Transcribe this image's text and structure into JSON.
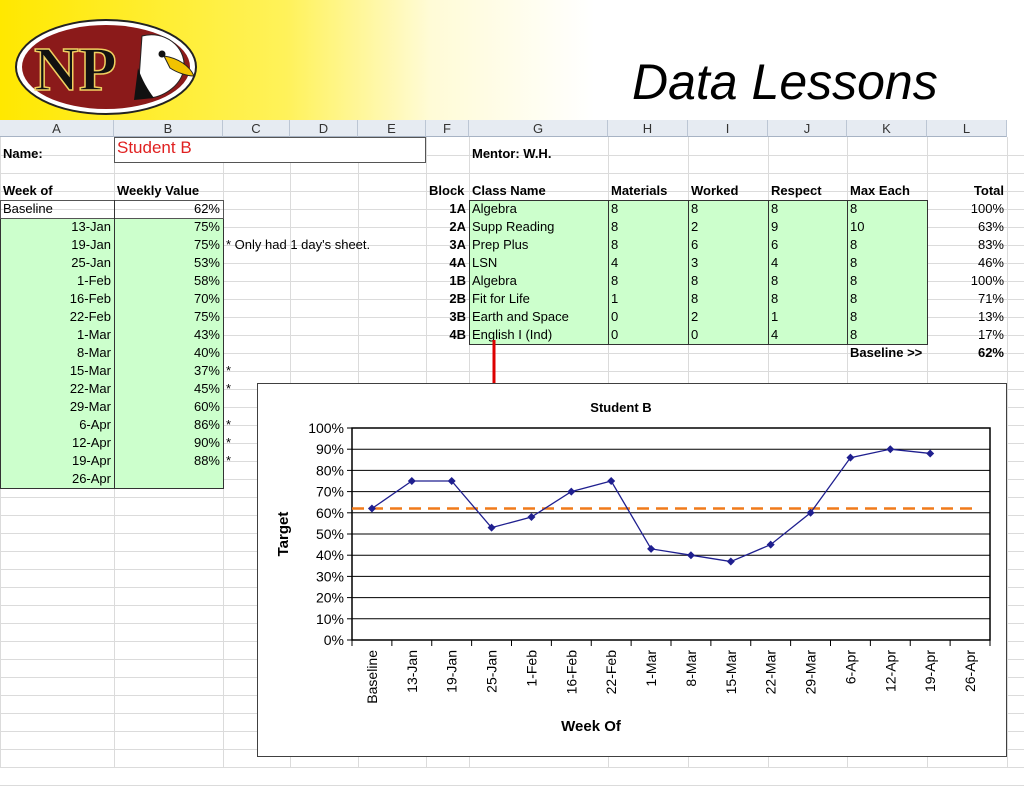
{
  "slide": {
    "title": "Data Lessons"
  },
  "logo": {
    "text": "NP"
  },
  "sheet": {
    "columns": [
      "A",
      "B",
      "C",
      "D",
      "E",
      "F",
      "G",
      "H",
      "I",
      "J",
      "K",
      "L"
    ],
    "name_label": "Name:",
    "name_value": "Student B",
    "mentor": "Mentor:  W.H.",
    "left_headers": [
      "Week of",
      "Weekly Value"
    ],
    "weeks": [
      {
        "label": "Baseline",
        "value": "62%",
        "note": ""
      },
      {
        "label": "13-Jan",
        "value": "75%",
        "note": ""
      },
      {
        "label": "19-Jan",
        "value": "75%",
        "note": "* Only had 1 day's sheet."
      },
      {
        "label": "25-Jan",
        "value": "53%",
        "note": ""
      },
      {
        "label": "1-Feb",
        "value": "58%",
        "note": ""
      },
      {
        "label": "16-Feb",
        "value": "70%",
        "note": ""
      },
      {
        "label": "22-Feb",
        "value": "75%",
        "note": ""
      },
      {
        "label": "1-Mar",
        "value": "43%",
        "note": ""
      },
      {
        "label": "8-Mar",
        "value": "40%",
        "note": ""
      },
      {
        "label": "15-Mar",
        "value": "37%",
        "note": "*"
      },
      {
        "label": "22-Mar",
        "value": "45%",
        "note": "*"
      },
      {
        "label": "29-Mar",
        "value": "60%",
        "note": ""
      },
      {
        "label": "6-Apr",
        "value": "86%",
        "note": "*"
      },
      {
        "label": "12-Apr",
        "value": "90%",
        "note": "*"
      },
      {
        "label": "19-Apr",
        "value": "88%",
        "note": "*"
      },
      {
        "label": "26-Apr",
        "value": "",
        "note": ""
      }
    ],
    "right_headers": [
      "Block",
      "Class Name",
      "Materials",
      "Worked",
      "Respect",
      "Max Each",
      "Total"
    ],
    "classes": [
      {
        "block": "1A",
        "name": "Algebra",
        "materials": "8",
        "worked": "8",
        "respect": "8",
        "max": "8",
        "total": "100%"
      },
      {
        "block": "2A",
        "name": "Supp Reading",
        "materials": "8",
        "worked": "2",
        "respect": "9",
        "max": "10",
        "total": "63%"
      },
      {
        "block": "3A",
        "name": "Prep Plus",
        "materials": "8",
        "worked": "6",
        "respect": "6",
        "max": "8",
        "total": "83%"
      },
      {
        "block": "4A",
        "name": "LSN",
        "materials": "4",
        "worked": "3",
        "respect": "4",
        "max": "8",
        "total": "46%"
      },
      {
        "block": "1B",
        "name": "Algebra",
        "materials": "8",
        "worked": "8",
        "respect": "8",
        "max": "8",
        "total": "100%"
      },
      {
        "block": "2B",
        "name": "Fit for Life",
        "materials": "1",
        "worked": "8",
        "respect": "8",
        "max": "8",
        "total": "71%"
      },
      {
        "block": "3B",
        "name": "Earth and Space",
        "materials": "0",
        "worked": "2",
        "respect": "1",
        "max": "8",
        "total": "13%"
      },
      {
        "block": "4B",
        "name": "English I (Ind)",
        "materials": "0",
        "worked": "0",
        "respect": "4",
        "max": "8",
        "total": "17%"
      }
    ],
    "baseline_label": "Baseline >>",
    "baseline_value": "62%"
  },
  "colors": {
    "series": "#1f1f8f",
    "baseline": "#f07a1a",
    "arrow": "#dd0000",
    "cell_green": "#ccffcc"
  },
  "chart_data": {
    "type": "line",
    "title": "Student B",
    "xlabel": "Week Of",
    "ylabel": "Target",
    "categories": [
      "Baseline",
      "13-Jan",
      "19-Jan",
      "25-Jan",
      "1-Feb",
      "16-Feb",
      "22-Feb",
      "1-Mar",
      "8-Mar",
      "15-Mar",
      "22-Mar",
      "29-Mar",
      "6-Apr",
      "12-Apr",
      "19-Apr",
      "26-Apr"
    ],
    "series": [
      {
        "values": [
          62,
          75,
          75,
          53,
          58,
          70,
          75,
          43,
          40,
          37,
          45,
          60,
          86,
          90,
          88,
          null
        ]
      }
    ],
    "baseline": 62,
    "ylim": [
      0,
      100
    ],
    "yticks": [
      "0%",
      "10%",
      "20%",
      "30%",
      "40%",
      "50%",
      "60%",
      "70%",
      "80%",
      "90%",
      "100%"
    ],
    "grid": true,
    "legend": "none"
  }
}
